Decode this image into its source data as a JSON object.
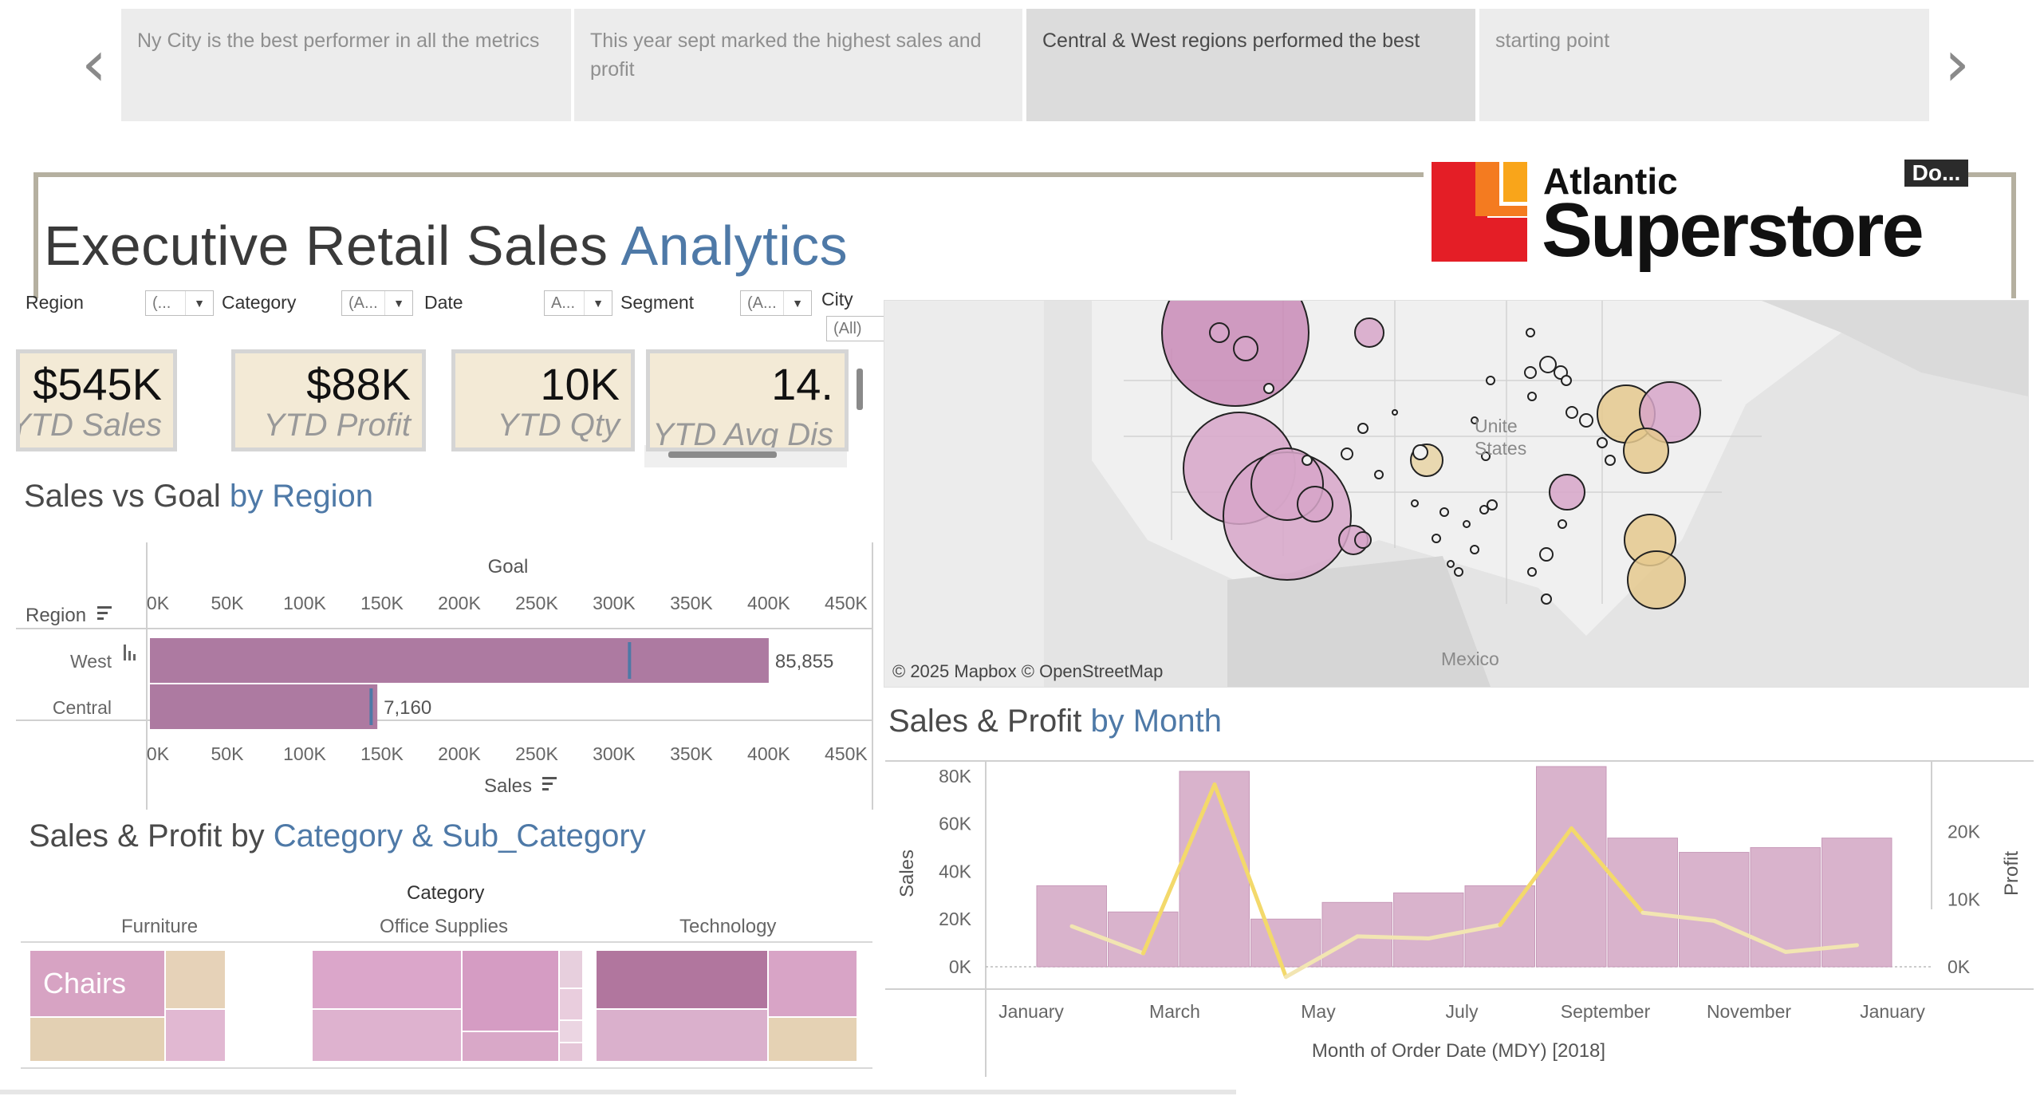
{
  "story": {
    "points": [
      {
        "label": "Ny City is the best performer in all the metrics"
      },
      {
        "label": "This year sept marked the highest sales and profit"
      },
      {
        "label": "Central & West regions performed the best"
      },
      {
        "label": "starting point"
      }
    ],
    "active_index": 2
  },
  "title": {
    "main": "Executive Retail Sales ",
    "accent": "Analytics"
  },
  "logo": {
    "line1": "Atlantic",
    "line2": "Superstore"
  },
  "download_label": "Do...",
  "filters": [
    {
      "label": "Region",
      "value": "(..."
    },
    {
      "label": "Category",
      "value": "(A..."
    },
    {
      "label": "Date",
      "value": "A..."
    },
    {
      "label": "Segment",
      "value": "(A..."
    },
    {
      "label": "City",
      "value": "(All)"
    }
  ],
  "kpis": [
    {
      "value": "$545K",
      "label": "YTD Sales"
    },
    {
      "value": "$88K",
      "label": "YTD Profit"
    },
    {
      "value": "10K",
      "label": "YTD Qty"
    },
    {
      "value": "14.",
      "label": "YTD Avg Dis"
    }
  ],
  "sales_vs_goal": {
    "title": "Sales vs Goal ",
    "title_accent": "by Region",
    "goal_axis_title": "Goal",
    "row_header": "Region",
    "x_axis_title": "Sales"
  },
  "category_section": {
    "title": "Sales & Profit by ",
    "title_accent": "Category & Sub_Category",
    "header": "Category",
    "columns": [
      "Furniture",
      "Office Supplies",
      "Technology"
    ],
    "highlight_label": "Chairs"
  },
  "month_section": {
    "title": "Sales & Profit ",
    "title_accent": "by Month",
    "x_axis_title": "Month of Order Date (MDY) [2018]",
    "y_left_title": "Sales",
    "y_right_title": "Profit"
  },
  "map": {
    "credit": "© 2025 Mapbox © OpenStreetMap",
    "labels": [
      "Unite",
      "States",
      "Mexico"
    ]
  },
  "colors": {
    "accent": "#4e79a7",
    "bar": "#b07aa1",
    "profit_line": "#f1d67a",
    "kpi_bg": "#f3ead6"
  },
  "chart_data": [
    {
      "type": "bar",
      "categories": [
        "West",
        "Central"
      ],
      "values": [
        400000,
        147000
      ],
      "goal": [
        310000,
        143000
      ],
      "labels": [
        "85,855",
        "7,160"
      ],
      "xlim": [
        0,
        465000
      ],
      "ticks": [
        "0K",
        "50K",
        "100K",
        "150K",
        "200K",
        "250K",
        "300K",
        "350K",
        "400K",
        "450K"
      ],
      "tick_values": [
        0,
        50000,
        100000,
        150000,
        200000,
        250000,
        300000,
        350000,
        400000,
        450000
      ]
    },
    {
      "type": "bar",
      "categories": [
        "Jan",
        "Feb",
        "Mar",
        "Apr",
        "May",
        "Jun",
        "Jul",
        "Aug",
        "Sep",
        "Oct",
        "Nov",
        "Dec"
      ],
      "series": [
        {
          "values": [
            34000,
            23000,
            82000,
            20000,
            27000,
            31000,
            34000,
            84000,
            54000,
            48000,
            50000,
            54000
          ]
        },
        {
          "values": [
            6000,
            2000,
            27000,
            -1500,
            4500,
            4200,
            6200,
            20500,
            8000,
            6800,
            2200,
            3200
          ],
          "type": "line"
        }
      ],
      "ylim": [
        0,
        85000
      ],
      "y2lim": [
        -2000,
        30000
      ],
      "y_ticks": [
        "0K",
        "20K",
        "40K",
        "60K",
        "80K"
      ],
      "y_tick_values": [
        0,
        20000,
        40000,
        60000,
        80000
      ],
      "y2_ticks": [
        "0K",
        "10K",
        "20K"
      ],
      "y2_tick_values": [
        0,
        10000,
        20000
      ],
      "x_tick_labels": [
        "January",
        "March",
        "May",
        "July",
        "September",
        "November",
        "January"
      ]
    }
  ]
}
